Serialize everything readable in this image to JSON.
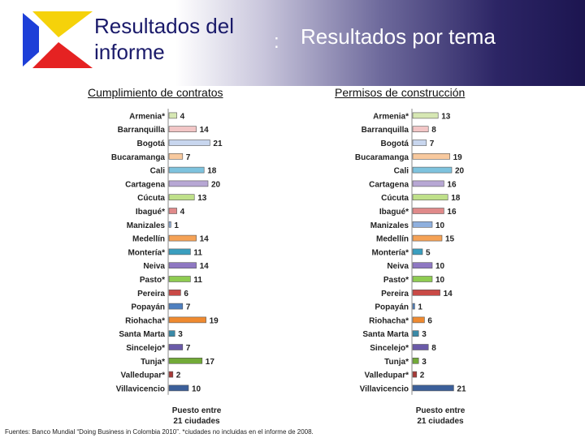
{
  "header": {
    "title_left_line1": "Resultados del",
    "title_left_line2": "informe",
    "colon": ":",
    "title_right": "Resultados por tema"
  },
  "footnote": "Fuentes: Banco Mundial “Doing Business in Colombia 2010”. *ciudades no incluidas en el informe de 2008.",
  "colors": {
    "Armenia*": "#d6e7b3",
    "Barranquilla": "#f2c6c6",
    "Bogotá": "#c8d6ee",
    "Bucaramanga": "#f8c99e",
    "Cali": "#7ec3de",
    "Cartagena": "#b7a7d4",
    "Cúcuta": "#bfe08a",
    "Ibagué*": "#e08a8a",
    "Manizales": "#8fb0de",
    "Medellín": "#f5a256",
    "Montería*": "#3a9fbf",
    "Neiva": "#8f78c2",
    "Pasto*": "#8fcc52",
    "Pereira": "#c94a46",
    "Popayán": "#4f80c0",
    "Riohacha*": "#ef8a30",
    "Santa Marta": "#3a8aa8",
    "Sincelejo*": "#6a5aa8",
    "Tunja*": "#72aa38",
    "Valledupar*": "#a83a38",
    "Villavicencio": "#3b5f9a"
  },
  "chart_data": [
    {
      "type": "bar",
      "orientation": "horizontal",
      "title": "Cumplimiento de contratos",
      "xlabel_line1": "Puesto entre",
      "xlabel_line2": "21 ciudades",
      "categories": [
        "Armenia*",
        "Barranquilla",
        "Bogotá",
        "Bucaramanga",
        "Cali",
        "Cartagena",
        "Cúcuta",
        "Ibagué*",
        "Manizales",
        "Medellín",
        "Montería*",
        "Neiva",
        "Pasto*",
        "Pereira",
        "Popayán",
        "Riohacha*",
        "Santa Marta",
        "Sincelejo*",
        "Tunja*",
        "Valledupar*",
        "Villavicencio"
      ],
      "values": [
        4,
        14,
        21,
        7,
        18,
        20,
        13,
        4,
        1,
        14,
        11,
        14,
        11,
        6,
        7,
        19,
        3,
        7,
        17,
        2,
        10
      ],
      "xlim": [
        0,
        21
      ]
    },
    {
      "type": "bar",
      "orientation": "horizontal",
      "title": "Permisos de construcción",
      "xlabel_line1": "Puesto entre",
      "xlabel_line2": "21 ciudades",
      "categories": [
        "Armenia*",
        "Barranquilla",
        "Bogotá",
        "Bucaramanga",
        "Cali",
        "Cartagena",
        "Cúcuta",
        "Ibagué*",
        "Manizales",
        "Medellín",
        "Montería*",
        "Neiva",
        "Pasto*",
        "Pereira",
        "Popayán",
        "Riohacha*",
        "Santa Marta",
        "Sincelejo*",
        "Tunja*",
        "Valledupar*",
        "Villavicencio"
      ],
      "values": [
        13,
        8,
        7,
        19,
        20,
        16,
        18,
        16,
        10,
        15,
        5,
        10,
        10,
        14,
        1,
        6,
        3,
        8,
        3,
        2,
        21
      ],
      "xlim": [
        0,
        21
      ]
    }
  ]
}
